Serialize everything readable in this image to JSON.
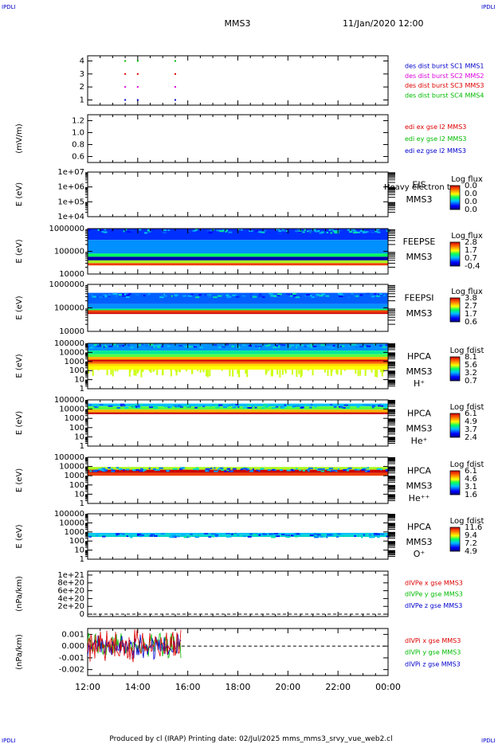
{
  "corner_marks": {
    "top_left": "IPDLI",
    "top_right": "IPDLI",
    "bottom_left": "IPDLI",
    "bottom_right": "IPDLI"
  },
  "header": {
    "title": "MMS3",
    "date": "11/Jan/2020 12:00"
  },
  "footer": {
    "text": "Produced by cl (IRAP)   Printing date: 02/Jul/2025   mms_mms3_srvy_vue_web2.cl"
  },
  "time_axis": {
    "ticks": [
      "12:00",
      "14:00",
      "16:00",
      "18:00",
      "20:00",
      "22:00",
      "00:00"
    ],
    "start_hour": 12,
    "end_hour": 24
  },
  "colors": {
    "red": "#dd0000",
    "magenta": "#dd00dd",
    "green": "#00bb00",
    "blue": "#0000cc"
  },
  "chart_data": [
    {
      "id": "burst",
      "type": "scatter",
      "ylabel": "",
      "yticks": [
        "1",
        "2",
        "3",
        "4"
      ],
      "ylim": [
        0.6,
        4.4
      ],
      "legend": [
        {
          "text": "des dist burst SC1 MMS1",
          "color": "#0000cc"
        },
        {
          "text": "des dist burst SC2 MMS2",
          "color": "#dd00dd"
        },
        {
          "text": "des dist burst SC3 MMS3",
          "color": "#dd0000"
        },
        {
          "text": "des dist burst SC4 MMS4",
          "color": "#00bb00"
        }
      ],
      "series": [
        {
          "y": 1,
          "x": [
            13.5,
            14.0,
            15.5
          ],
          "color": "#0000cc"
        },
        {
          "y": 2,
          "x": [
            13.5,
            14.0,
            15.5
          ],
          "color": "#dd00dd"
        },
        {
          "y": 3,
          "x": [
            13.5,
            14.0,
            15.5
          ],
          "color": "#dd0000"
        },
        {
          "y": 4,
          "x": [
            13.5,
            14.0,
            15.5
          ],
          "color": "#00bb00"
        }
      ]
    },
    {
      "id": "edi",
      "type": "line",
      "ylabel": "(mV/m)",
      "yticks": [
        "0.6",
        "0.8",
        "1.0",
        "1.2"
      ],
      "ylim": [
        0.5,
        1.3
      ],
      "legend": [
        {
          "text": "edi ex gse l2 MMS3",
          "color": "#dd0000"
        },
        {
          "text": "edi ey gse l2 MMS3",
          "color": "#00bb00"
        },
        {
          "text": "edi ez gse l2 MMS3",
          "color": "#0000cc"
        }
      ]
    },
    {
      "id": "eis",
      "type": "heatmap",
      "ylabel": "E (eV)",
      "yticks": [
        "1e+04",
        "1e+05",
        "1e+06",
        "1e+07"
      ],
      "inst": "EIS",
      "sc": "MMS3",
      "note": "Heavy electron to",
      "cbar_title": "Log flux",
      "cbar_ticks": [
        "0.0",
        "0.0",
        "0.0",
        "0.0"
      ]
    },
    {
      "id": "feepse",
      "type": "heatmap",
      "ylabel": "E (eV)",
      "yticks": [
        "10000",
        "100000",
        "1000000"
      ],
      "inst": "FEEPSE",
      "sc": "MMS3",
      "cbar_title": "Log flux",
      "cbar_ticks": [
        "2.8",
        "1.7",
        "0.7",
        "-0.4"
      ],
      "coverage": [
        0,
        24
      ]
    },
    {
      "id": "feepsi",
      "type": "heatmap",
      "ylabel": "E (eV)",
      "yticks": [
        "10000",
        "100000",
        "1000000"
      ],
      "inst": "FEEPSI",
      "sc": "MMS3",
      "cbar_title": "Log flux",
      "cbar_ticks": [
        "3.8",
        "2.7",
        "1.7",
        "0.6"
      ],
      "coverage": [
        0,
        24
      ]
    },
    {
      "id": "hpca_h",
      "type": "heatmap",
      "ylabel": "E (eV)",
      "yticks": [
        "1",
        "10",
        "100",
        "1000",
        "10000",
        "100000"
      ],
      "inst": "HPCA",
      "sc": "MMS3",
      "species": "H⁺",
      "cbar_title": "Log fdist",
      "cbar_ticks": [
        "8.1",
        "5.6",
        "3.2",
        "0.7"
      ],
      "coverage": [
        0,
        24
      ]
    },
    {
      "id": "hpca_he",
      "type": "heatmap",
      "ylabel": "E (eV)",
      "yticks": [
        "1",
        "10",
        "100",
        "1000",
        "10000",
        "100000"
      ],
      "inst": "HPCA",
      "sc": "MMS3",
      "species": "He⁺",
      "cbar_title": "Log fdist",
      "cbar_ticks": [
        "6.1",
        "4.9",
        "3.7",
        "2.4"
      ],
      "coverage": [
        0,
        24
      ]
    },
    {
      "id": "hpca_hepp",
      "type": "heatmap",
      "ylabel": "E (eV)",
      "yticks": [
        "1",
        "10",
        "100",
        "1000",
        "10000",
        "100000"
      ],
      "inst": "HPCA",
      "sc": "MMS3",
      "species": "He⁺⁺",
      "cbar_title": "Log fdist",
      "cbar_ticks": [
        "6.1",
        "4.6",
        "3.1",
        "1.6"
      ],
      "coverage": [
        0,
        24
      ]
    },
    {
      "id": "hpca_o",
      "type": "heatmap",
      "ylabel": "E (eV)",
      "yticks": [
        "1",
        "10",
        "100",
        "1000",
        "10000",
        "100000"
      ],
      "inst": "HPCA",
      "sc": "MMS3",
      "species": "O⁺",
      "cbar_title": "Log fdist",
      "cbar_ticks": [
        "11.6",
        "9.4",
        "7.2",
        "4.9"
      ],
      "coverage": [
        0,
        24
      ]
    },
    {
      "id": "dpe",
      "type": "line",
      "ylabel": "(nPa/km)",
      "yticks": [
        "0",
        "2e+20",
        "4e+20",
        "6e+20",
        "8e+20",
        "1e+21"
      ],
      "ylim": [
        -6e+19,
        1.1e+21
      ],
      "zero_line": 0,
      "legend": [
        {
          "text": "dIVPe x gse MMS3",
          "color": "#dd0000"
        },
        {
          "text": "dIVPe y gse MMS3",
          "color": "#00bb00"
        },
        {
          "text": "dIVPe z gse MMS3",
          "color": "#0000cc"
        }
      ]
    },
    {
      "id": "dpi",
      "type": "line",
      "ylabel": "(nPa/km)",
      "yticks": [
        "-0.002",
        "-0.001",
        "0.000",
        "0.001"
      ],
      "ylim": [
        -0.0025,
        0.0015
      ],
      "zero_line": 0,
      "data_end_hour": 15.75,
      "legend": [
        {
          "text": "dIVPi x gse MMS3",
          "color": "#dd0000"
        },
        {
          "text": "dIVPi y gse MMS3",
          "color": "#00bb00"
        },
        {
          "text": "dIVPi z gse MMS3",
          "color": "#0000cc"
        }
      ]
    }
  ]
}
